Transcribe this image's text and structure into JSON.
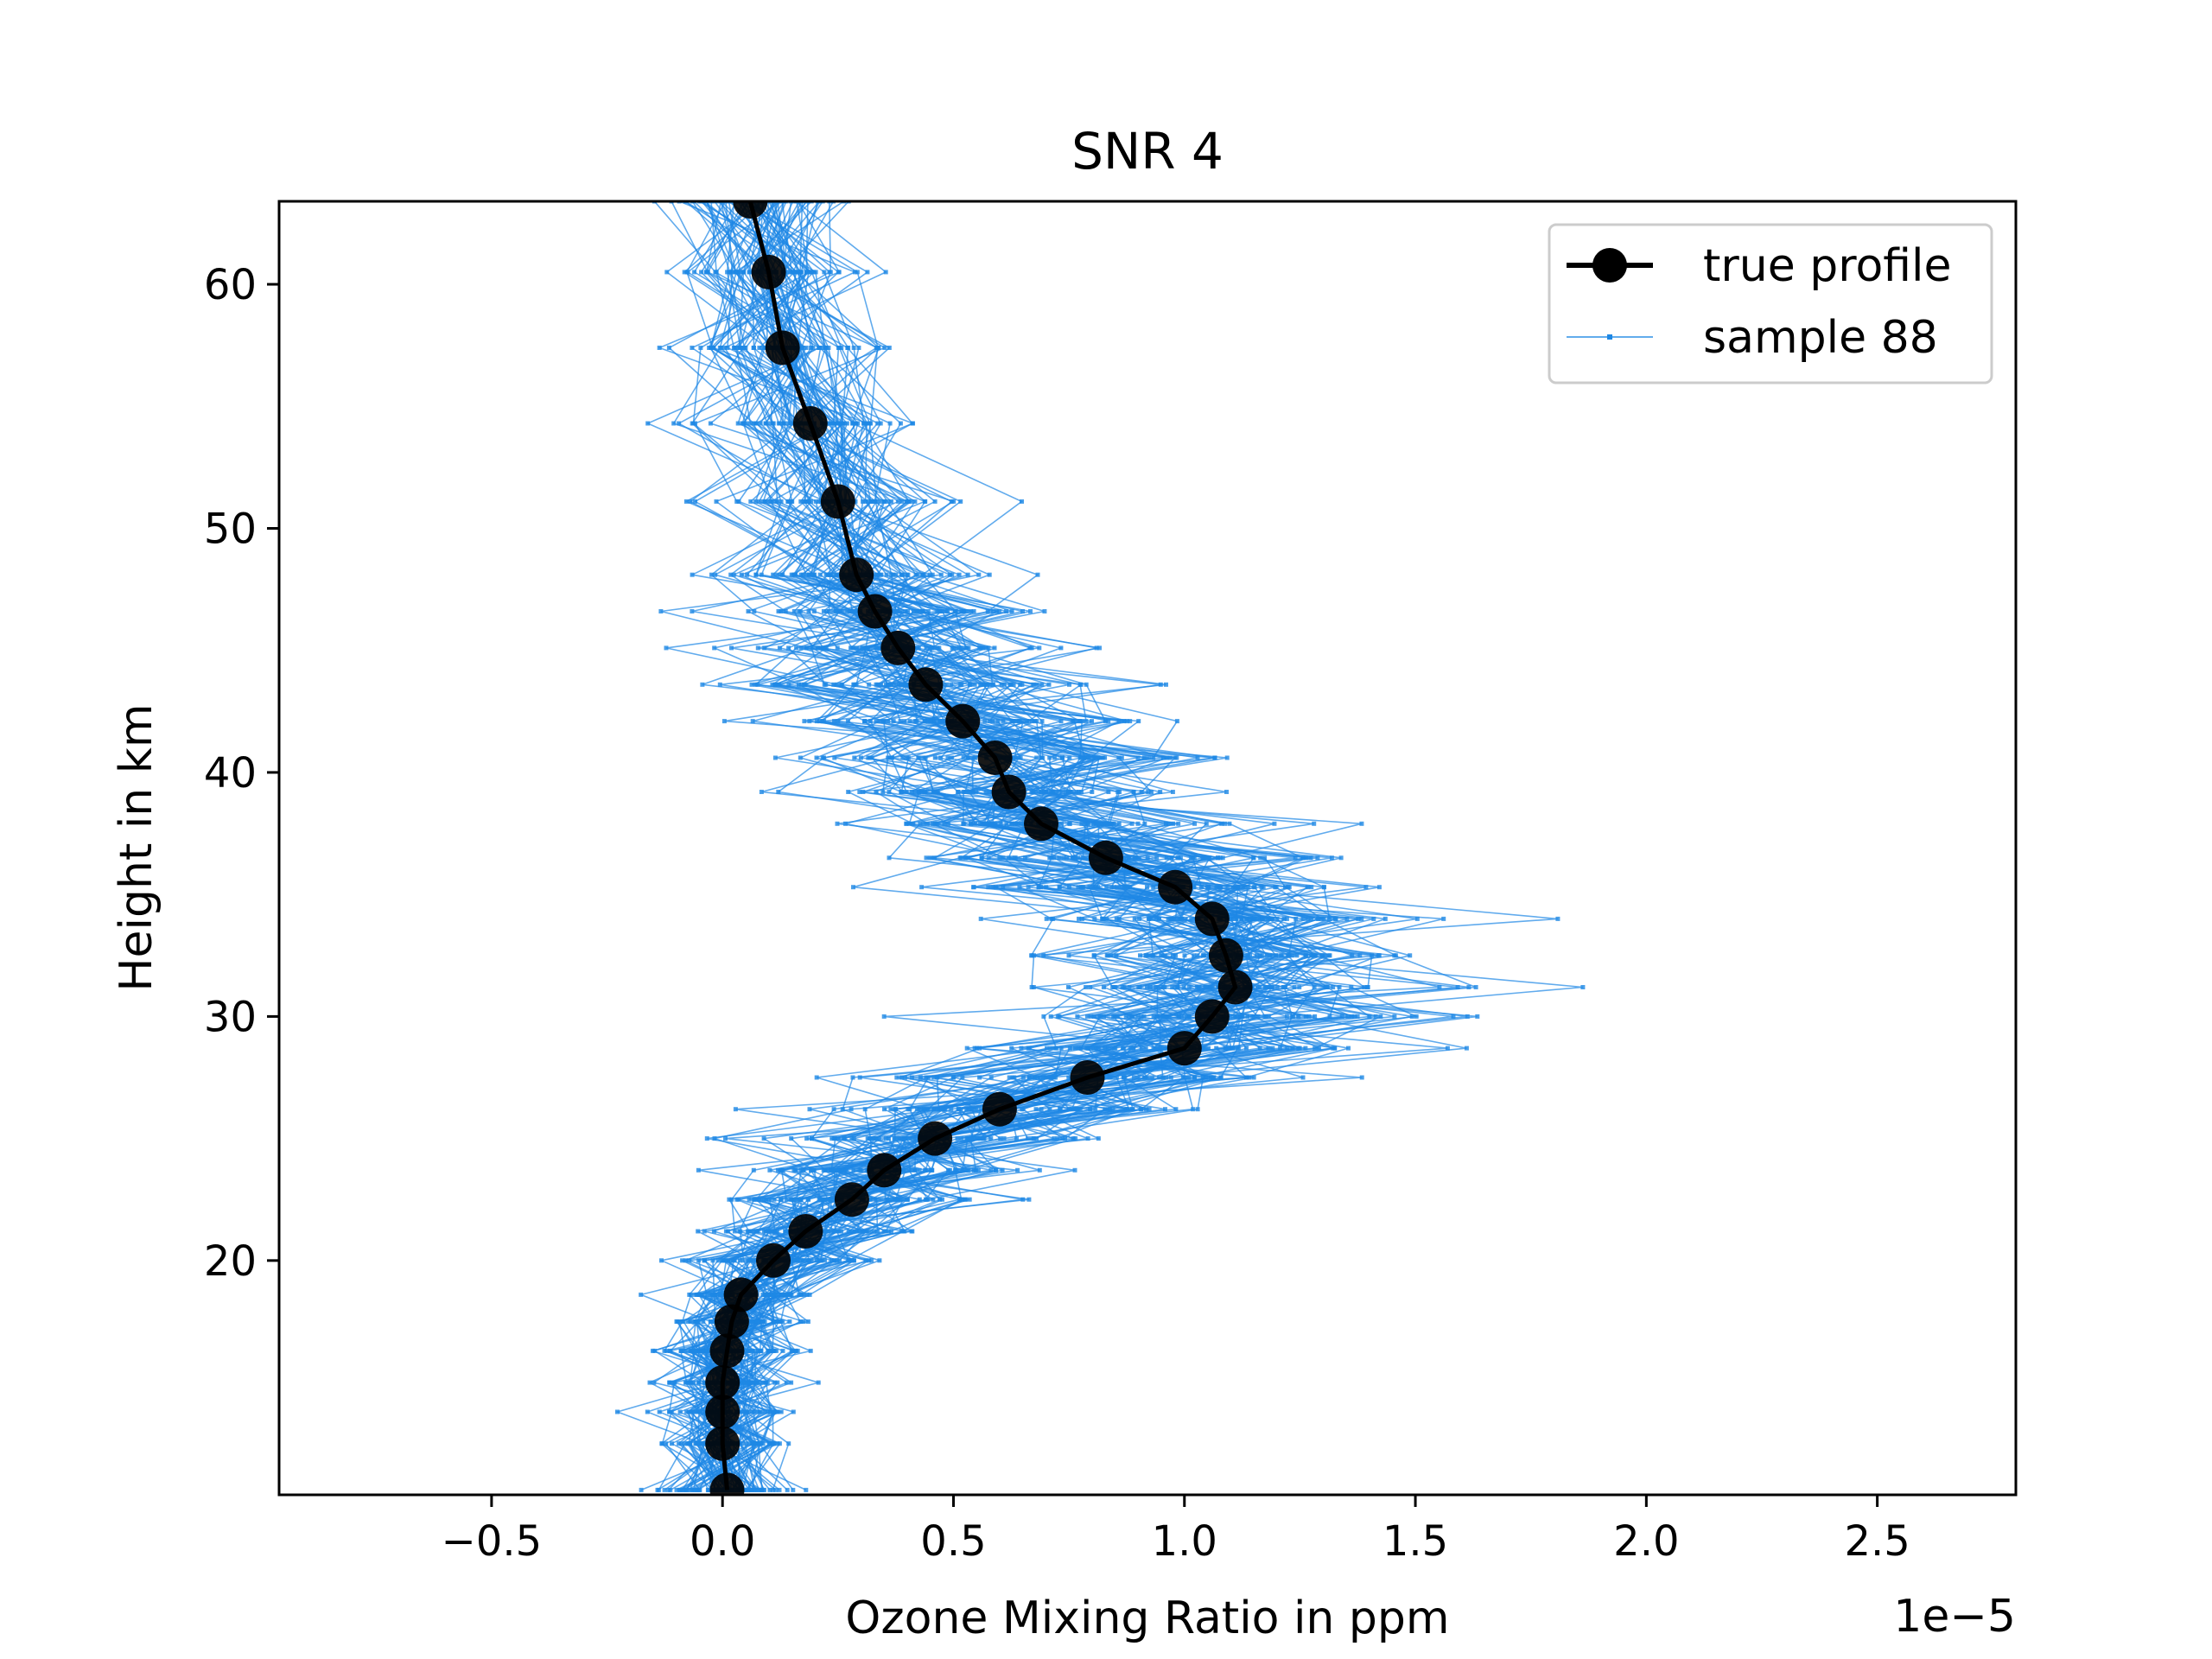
{
  "chart_data": {
    "type": "line",
    "title": "SNR 4",
    "xlabel": "Ozone Mixing Ratio in ppm",
    "ylabel": "Height in km",
    "x_offset_text": "1e−5",
    "xlim": [
      -0.96,
      2.8
    ],
    "ylim": [
      10.4,
      63.4
    ],
    "x_scale_factor": 1e-05,
    "xticks": [
      -0.5,
      0.0,
      0.5,
      1.0,
      1.5,
      2.0,
      2.5
    ],
    "xtick_labels": [
      "−0.5",
      "0.0",
      "0.5",
      "1.0",
      "1.5",
      "2.0",
      "2.5"
    ],
    "yticks": [
      20,
      30,
      40,
      50,
      60
    ],
    "ytick_labels": [
      "20",
      "30",
      "40",
      "50",
      "60"
    ],
    "grid": false,
    "legend": {
      "placement": "top-right",
      "entries": [
        {
          "label": "true profile",
          "color": "#000000",
          "marker": "circle"
        },
        {
          "label": "sample 88",
          "color": "#1e88e5",
          "marker": "point"
        }
      ]
    },
    "series": [
      {
        "name": "true profile",
        "color": "#000000",
        "heights": [
          10.6,
          12.5,
          13.8,
          15.0,
          16.3,
          17.5,
          18.6,
          20.0,
          21.2,
          22.5,
          23.7,
          25.0,
          26.2,
          27.5,
          28.7,
          30.0,
          31.2,
          32.5,
          34.0,
          35.3,
          36.5,
          37.9,
          39.2,
          40.6,
          42.1,
          43.6,
          45.1,
          46.6,
          48.1,
          51.1,
          54.3,
          57.4,
          60.5,
          63.4
        ],
        "values": [
          0.01,
          0.0,
          0.0,
          0.0,
          0.01,
          0.02,
          0.04,
          0.11,
          0.18,
          0.28,
          0.35,
          0.46,
          0.6,
          0.79,
          1.0,
          1.06,
          1.11,
          1.09,
          1.06,
          0.98,
          0.83,
          0.69,
          0.62,
          0.59,
          0.52,
          0.44,
          0.38,
          0.33,
          0.29,
          0.25,
          0.19,
          0.13,
          0.1,
          0.06
        ]
      }
    ],
    "samples": {
      "name": "sample 88",
      "color": "#1e88e5",
      "count": 88,
      "spread_note": "noisy realisations of the true profile"
    }
  }
}
